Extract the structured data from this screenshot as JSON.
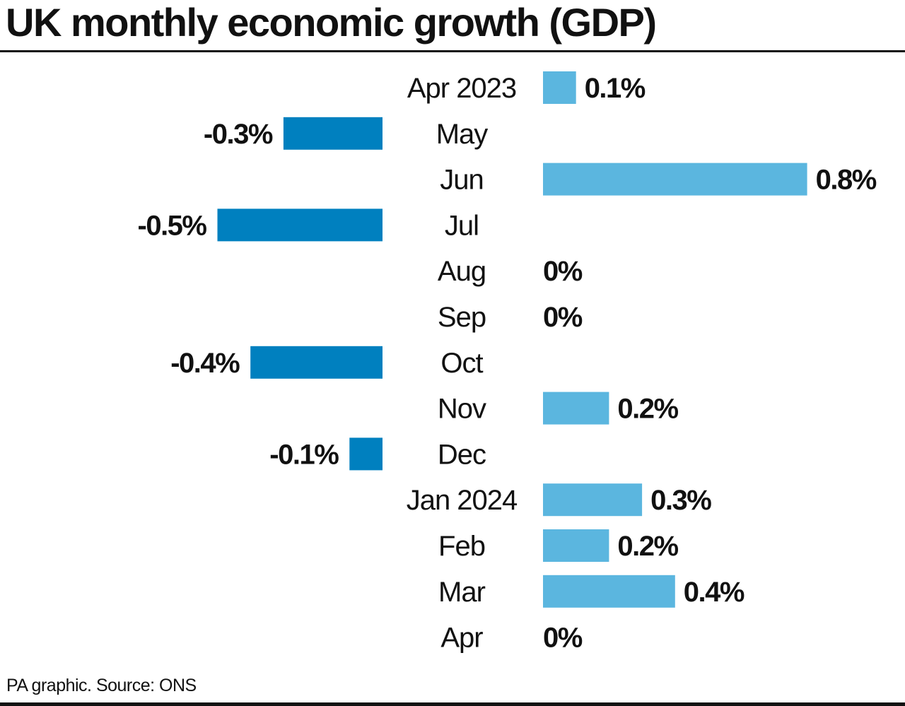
{
  "header": {
    "title": "UK monthly economic growth (GDP)"
  },
  "footer": {
    "source": "PA graphic. Source: ONS"
  },
  "colors": {
    "positive": "#5bb6df",
    "negative": "#0080bf",
    "text": "#111111",
    "rule": "#111111"
  },
  "chart_data": {
    "type": "bar",
    "orientation": "horizontal",
    "title": "UK monthly economic growth (GDP)",
    "unit": "%",
    "categories": [
      "Apr 2023",
      "May",
      "Jun",
      "Jul",
      "Aug",
      "Sep",
      "Oct",
      "Nov",
      "Dec",
      "Jan 2024",
      "Feb",
      "Mar",
      "Apr"
    ],
    "values": [
      0.1,
      -0.3,
      0.8,
      -0.5,
      0,
      0,
      -0.4,
      0.2,
      -0.1,
      0.3,
      0.2,
      0.4,
      0
    ],
    "value_labels": [
      "0.1%",
      "-0.3%",
      "0.8%",
      "-0.5%",
      "0%",
      "0%",
      "-0.4%",
      "0.2%",
      "-0.1%",
      "0.3%",
      "0.2%",
      "0.4%",
      "0%"
    ],
    "xlim": [
      -0.5,
      0.8
    ],
    "grid": false,
    "legend": "none"
  }
}
